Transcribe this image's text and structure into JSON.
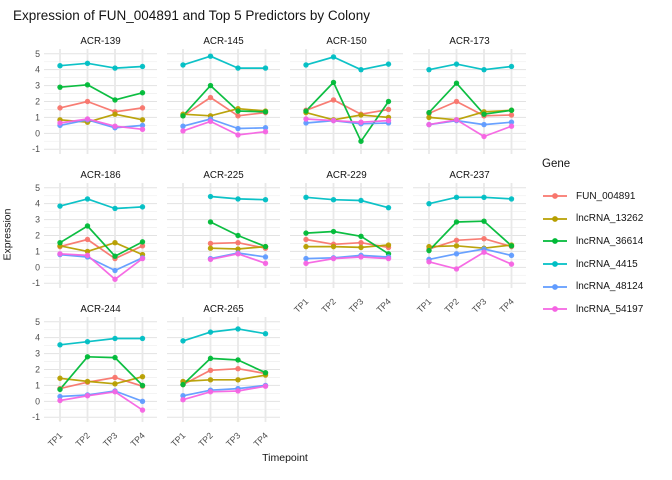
{
  "title": "Expression of FUN_004891 and Top 5 Predictors by Colony",
  "axes": {
    "x_label": "Timepoint",
    "y_label": "Expression",
    "x_ticks": [
      "TP1",
      "TP2",
      "TP3",
      "TP4"
    ],
    "y_ticks": [
      5,
      4,
      3,
      2,
      1,
      0,
      -1
    ]
  },
  "legend": {
    "title": "Gene",
    "position": "right",
    "entries": [
      {
        "label": "FUN_004891",
        "color": "#F8766D"
      },
      {
        "label": "lncRNA_13262",
        "color": "#B79F00"
      },
      {
        "label": "lncRNA_36614",
        "color": "#00BA38"
      },
      {
        "label": "lncRNA_4415",
        "color": "#00BFC4"
      },
      {
        "label": "lncRNA_48124",
        "color": "#619CFF"
      },
      {
        "label": "lncRNA_54197",
        "color": "#F564E3"
      }
    ]
  },
  "chart_data": {
    "type": "line",
    "facet_by": "Colony",
    "x": [
      "TP1",
      "TP2",
      "TP3",
      "TP4"
    ],
    "xlabel": "Timepoint",
    "ylabel": "Expression",
    "ylim": [
      -1,
      5
    ],
    "grid": true,
    "genes": [
      "FUN_004891",
      "lncRNA_13262",
      "lncRNA_36614",
      "lncRNA_4415",
      "lncRNA_48124",
      "lncRNA_54197"
    ],
    "gene_colors": {
      "FUN_004891": "#F8766D",
      "lncRNA_13262": "#B79F00",
      "lncRNA_36614": "#00BA38",
      "lncRNA_4415": "#00BFC4",
      "lncRNA_48124": "#619CFF",
      "lncRNA_54197": "#F564E3"
    },
    "facets": [
      {
        "colony": "ACR-139",
        "values": {
          "FUN_004891": [
            1.6,
            2.0,
            1.35,
            1.6
          ],
          "lncRNA_13262": [
            0.85,
            0.7,
            1.2,
            0.85
          ],
          "lncRNA_36614": [
            2.9,
            3.05,
            2.1,
            2.55
          ],
          "lncRNA_4415": [
            4.25,
            4.4,
            4.1,
            4.2
          ],
          "lncRNA_48124": [
            0.5,
            0.85,
            0.35,
            0.5
          ],
          "lncRNA_54197": [
            0.65,
            0.9,
            0.45,
            0.25
          ]
        }
      },
      {
        "colony": "ACR-145",
        "values": {
          "FUN_004891": [
            1.1,
            2.25,
            1.1,
            1.3
          ],
          "lncRNA_13262": [
            1.2,
            1.1,
            1.55,
            1.4
          ],
          "lncRNA_36614": [
            1.1,
            3.0,
            1.4,
            1.35
          ],
          "lncRNA_4415": [
            4.3,
            4.85,
            4.1,
            4.1
          ],
          "lncRNA_48124": [
            0.45,
            0.9,
            0.3,
            0.35
          ],
          "lncRNA_54197": [
            0.15,
            0.75,
            -0.1,
            0.1
          ]
        }
      },
      {
        "colony": "ACR-150",
        "values": {
          "FUN_004891": [
            1.45,
            2.1,
            1.2,
            1.5
          ],
          "lncRNA_13262": [
            1.3,
            0.85,
            1.15,
            1.0
          ],
          "lncRNA_36614": [
            1.4,
            3.2,
            -0.5,
            2.0
          ],
          "lncRNA_4415": [
            4.3,
            4.8,
            4.0,
            4.35
          ],
          "lncRNA_48124": [
            0.65,
            0.8,
            0.6,
            0.65
          ],
          "lncRNA_54197": [
            0.9,
            0.8,
            0.7,
            0.8
          ]
        }
      },
      {
        "colony": "ACR-173",
        "values": {
          "FUN_004891": [
            1.25,
            2.0,
            1.1,
            1.15
          ],
          "lncRNA_13262": [
            1.0,
            0.85,
            1.35,
            1.45
          ],
          "lncRNA_36614": [
            1.3,
            3.15,
            1.2,
            1.45
          ],
          "lncRNA_4415": [
            4.0,
            4.35,
            4.0,
            4.2
          ],
          "lncRNA_48124": [
            0.55,
            0.8,
            0.55,
            0.7
          ],
          "lncRNA_54197": [
            0.55,
            0.85,
            -0.2,
            0.45
          ]
        }
      },
      {
        "colony": "ACR-186",
        "values": {
          "FUN_004891": [
            1.3,
            1.75,
            0.55,
            1.35
          ],
          "lncRNA_13262": [
            1.35,
            1.0,
            1.55,
            0.8
          ],
          "lncRNA_36614": [
            1.55,
            2.6,
            0.7,
            1.6
          ],
          "lncRNA_4415": [
            3.85,
            4.3,
            3.7,
            3.8
          ],
          "lncRNA_48124": [
            0.8,
            0.65,
            -0.2,
            0.6
          ],
          "lncRNA_54197": [
            0.85,
            0.75,
            -0.75,
            0.55
          ]
        }
      },
      {
        "colony": "ACR-225",
        "values": {
          "FUN_004891": [
            null,
            1.5,
            1.55,
            1.2
          ],
          "lncRNA_13262": [
            null,
            1.2,
            1.15,
            1.3
          ],
          "lncRNA_36614": [
            null,
            2.85,
            2.0,
            1.3
          ],
          "lncRNA_4415": [
            null,
            4.45,
            4.3,
            4.25
          ],
          "lncRNA_48124": [
            null,
            0.55,
            0.9,
            0.65
          ],
          "lncRNA_54197": [
            null,
            0.5,
            0.85,
            0.25
          ]
        }
      },
      {
        "colony": "ACR-229",
        "values": {
          "FUN_004891": [
            1.75,
            1.45,
            1.55,
            1.25
          ],
          "lncRNA_13262": [
            1.3,
            1.3,
            1.25,
            1.4
          ],
          "lncRNA_36614": [
            2.15,
            2.25,
            1.95,
            0.85
          ],
          "lncRNA_4415": [
            4.4,
            4.25,
            4.2,
            3.75
          ],
          "lncRNA_48124": [
            0.55,
            0.6,
            0.75,
            0.65
          ],
          "lncRNA_54197": [
            0.25,
            0.55,
            0.65,
            0.55
          ]
        }
      },
      {
        "colony": "ACR-237",
        "values": {
          "FUN_004891": [
            1.15,
            1.7,
            1.8,
            1.3
          ],
          "lncRNA_13262": [
            1.3,
            1.35,
            1.2,
            1.4
          ],
          "lncRNA_36614": [
            1.05,
            2.85,
            2.9,
            1.35
          ],
          "lncRNA_4415": [
            4.0,
            4.4,
            4.4,
            4.3
          ],
          "lncRNA_48124": [
            0.5,
            0.85,
            1.15,
            0.75
          ],
          "lncRNA_54197": [
            0.35,
            -0.1,
            0.95,
            0.2
          ]
        }
      },
      {
        "colony": "ACR-244",
        "values": {
          "FUN_004891": [
            0.8,
            1.2,
            1.5,
            0.95
          ],
          "lncRNA_13262": [
            1.45,
            1.25,
            1.1,
            1.55
          ],
          "lncRNA_36614": [
            0.75,
            2.8,
            2.75,
            1.0
          ],
          "lncRNA_4415": [
            3.55,
            3.75,
            3.95,
            3.95
          ],
          "lncRNA_48124": [
            0.3,
            0.4,
            0.65,
            0.0
          ],
          "lncRNA_54197": [
            0.05,
            0.35,
            0.6,
            -0.55
          ]
        }
      },
      {
        "colony": "ACR-265",
        "values": {
          "FUN_004891": [
            1.05,
            1.95,
            2.05,
            1.75
          ],
          "lncRNA_13262": [
            1.25,
            1.35,
            1.35,
            1.65
          ],
          "lncRNA_36614": [
            1.05,
            2.7,
            2.6,
            1.8
          ],
          "lncRNA_4415": [
            3.8,
            4.35,
            4.55,
            4.25
          ],
          "lncRNA_48124": [
            0.35,
            0.7,
            0.8,
            1.0
          ],
          "lncRNA_54197": [
            0.1,
            0.6,
            0.65,
            0.95
          ]
        }
      }
    ]
  }
}
